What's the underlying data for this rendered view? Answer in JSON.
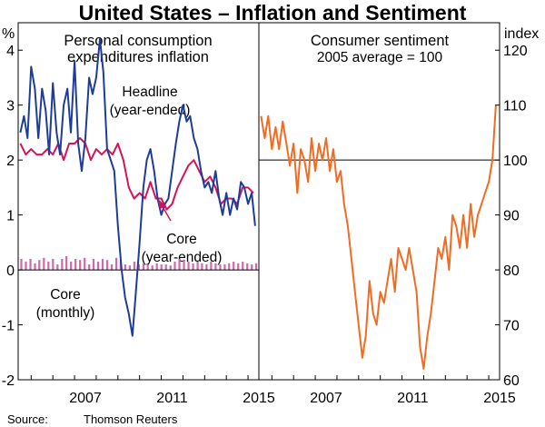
{
  "title": "United States – Inflation and Sentiment",
  "source": {
    "label": "Source:",
    "text": "Thomson Reuters"
  },
  "colors": {
    "headline": "#1f3c96",
    "core": "#d4145a",
    "core_monthly": "#cc6aad",
    "sentiment": "#f26b22",
    "axis": "#000000"
  },
  "chart_data": [
    {
      "type": "line",
      "panel": "left",
      "title": "Personal consumption",
      "subtitle": "expenditures inflation",
      "ylabel": "%",
      "ylim": [
        -2,
        4.5
      ],
      "yticks": [
        -2,
        -1,
        0,
        1,
        2,
        3,
        4
      ],
      "xlim": [
        2003.9,
        2015.0
      ],
      "xticks": [
        2007,
        2011,
        2015
      ],
      "annotations": {
        "headline": [
          "Headline",
          "(year-ended)"
        ],
        "core": [
          "Core",
          "(year-ended)"
        ],
        "core_monthly": [
          "Core",
          "(monthly)"
        ]
      },
      "series": [
        {
          "name": "Headline (year-ended)",
          "type": "line",
          "x": [
            2004.0,
            2004.17,
            2004.33,
            2004.5,
            2004.67,
            2004.83,
            2005.0,
            2005.17,
            2005.33,
            2005.5,
            2005.67,
            2005.83,
            2006.0,
            2006.17,
            2006.33,
            2006.5,
            2006.67,
            2006.83,
            2007.0,
            2007.17,
            2007.33,
            2007.5,
            2007.67,
            2007.83,
            2008.0,
            2008.17,
            2008.33,
            2008.5,
            2008.67,
            2008.83,
            2009.0,
            2009.17,
            2009.33,
            2009.5,
            2009.67,
            2009.83,
            2010.0,
            2010.17,
            2010.33,
            2010.5,
            2010.67,
            2010.83,
            2011.0,
            2011.17,
            2011.33,
            2011.5,
            2011.67,
            2011.83,
            2012.0,
            2012.17,
            2012.33,
            2012.5,
            2012.67,
            2012.83,
            2013.0,
            2013.17,
            2013.33,
            2013.5,
            2013.67,
            2013.83,
            2014.0,
            2014.17,
            2014.33,
            2014.5,
            2014.67,
            2014.83
          ],
          "values": [
            2.5,
            2.8,
            2.4,
            3.7,
            3.3,
            2.4,
            3.3,
            2.9,
            2.1,
            3.4,
            2.5,
            2.1,
            3.0,
            3.3,
            2.5,
            3.8,
            2.3,
            1.8,
            2.4,
            3.5,
            3.2,
            3.5,
            4.2,
            3.6,
            2.2,
            2.0,
            1.8,
            0.8,
            0.0,
            -0.5,
            -0.8,
            -1.2,
            -0.4,
            0.5,
            1.5,
            2.0,
            2.2,
            1.8,
            1.3,
            1.0,
            1.2,
            1.3,
            1.8,
            2.3,
            2.7,
            3.0,
            2.7,
            2.8,
            2.4,
            2.2,
            1.8,
            1.5,
            1.6,
            1.4,
            1.8,
            1.3,
            1.0,
            1.4,
            1.0,
            1.3,
            1.1,
            1.6,
            1.5,
            1.2,
            1.4,
            0.8
          ]
        },
        {
          "name": "Core (year-ended)",
          "type": "line",
          "x": [
            2004.0,
            2004.25,
            2004.5,
            2004.75,
            2005.0,
            2005.25,
            2005.5,
            2005.75,
            2006.0,
            2006.25,
            2006.5,
            2006.75,
            2007.0,
            2007.25,
            2007.5,
            2007.75,
            2008.0,
            2008.25,
            2008.5,
            2008.75,
            2009.0,
            2009.25,
            2009.5,
            2009.75,
            2010.0,
            2010.25,
            2010.5,
            2010.75,
            2011.0,
            2011.25,
            2011.5,
            2011.75,
            2012.0,
            2012.25,
            2012.5,
            2012.75,
            2013.0,
            2013.25,
            2013.5,
            2013.75,
            2014.0,
            2014.25,
            2014.5,
            2014.75
          ],
          "values": [
            2.3,
            2.1,
            2.2,
            2.1,
            2.1,
            2.2,
            2.1,
            2.3,
            2.0,
            2.3,
            2.3,
            2.4,
            2.3,
            2.0,
            2.2,
            2.1,
            2.2,
            2.1,
            2.3,
            2.0,
            1.5,
            1.3,
            1.4,
            1.3,
            1.6,
            1.3,
            1.3,
            1.1,
            1.2,
            1.5,
            1.7,
            1.9,
            2.0,
            1.8,
            1.6,
            1.7,
            1.5,
            1.2,
            1.3,
            1.3,
            1.2,
            1.5,
            1.5,
            1.4
          ]
        },
        {
          "name": "Core (monthly)",
          "type": "bar",
          "x": [
            2004.0,
            2004.21,
            2004.42,
            2004.63,
            2004.83,
            2005.04,
            2005.25,
            2005.46,
            2005.67,
            2005.88,
            2006.08,
            2006.29,
            2006.5,
            2006.71,
            2006.92,
            2007.13,
            2007.33,
            2007.54,
            2007.75,
            2007.96,
            2008.17,
            2008.38,
            2008.58,
            2008.79,
            2009.0,
            2009.21,
            2009.42,
            2009.63,
            2009.83,
            2010.04,
            2010.25,
            2010.46,
            2010.67,
            2010.88,
            2011.08,
            2011.29,
            2011.5,
            2011.71,
            2011.92,
            2012.13,
            2012.33,
            2012.54,
            2012.75,
            2012.96,
            2013.17,
            2013.38,
            2013.58,
            2013.79,
            2014.0,
            2014.21,
            2014.42,
            2014.63,
            2014.83
          ],
          "values": [
            0.2,
            0.15,
            0.2,
            0.12,
            0.18,
            0.22,
            0.15,
            0.2,
            0.1,
            0.2,
            0.25,
            0.15,
            0.2,
            0.18,
            0.22,
            0.1,
            0.2,
            0.15,
            0.2,
            0.18,
            0.1,
            0.22,
            0.15,
            0.1,
            0.08,
            0.15,
            0.1,
            0.12,
            0.1,
            0.08,
            0.12,
            0.1,
            0.1,
            0.08,
            0.15,
            0.2,
            0.18,
            0.15,
            0.12,
            0.15,
            0.12,
            0.1,
            0.15,
            0.12,
            0.1,
            0.1,
            0.12,
            0.15,
            0.12,
            0.15,
            0.12,
            0.1,
            0.12
          ]
        }
      ]
    },
    {
      "type": "line",
      "panel": "right",
      "title": "Consumer sentiment",
      "subtitle": "2005 average = 100",
      "ylabel": "index",
      "ylim": [
        60,
        125
      ],
      "yticks": [
        60,
        70,
        80,
        90,
        100,
        110,
        120
      ],
      "xlim": [
        2003.9,
        2015.0
      ],
      "xticks": [
        2007,
        2011,
        2015
      ],
      "reference_line": 100,
      "series": [
        {
          "name": "Consumer sentiment",
          "x": [
            2004.0,
            2004.17,
            2004.33,
            2004.5,
            2004.67,
            2004.83,
            2005.0,
            2005.17,
            2005.33,
            2005.5,
            2005.67,
            2005.83,
            2006.0,
            2006.17,
            2006.33,
            2006.5,
            2006.67,
            2006.83,
            2007.0,
            2007.17,
            2007.33,
            2007.5,
            2007.67,
            2007.83,
            2008.0,
            2008.17,
            2008.33,
            2008.5,
            2008.67,
            2008.83,
            2009.0,
            2009.17,
            2009.33,
            2009.5,
            2009.67,
            2009.83,
            2010.0,
            2010.17,
            2010.33,
            2010.5,
            2010.67,
            2010.83,
            2011.0,
            2011.17,
            2011.33,
            2011.5,
            2011.67,
            2011.83,
            2012.0,
            2012.17,
            2012.33,
            2012.5,
            2012.67,
            2012.83,
            2013.0,
            2013.17,
            2013.33,
            2013.5,
            2013.67,
            2013.83,
            2014.0,
            2014.17,
            2014.33,
            2014.5,
            2014.67,
            2014.83
          ],
          "values": [
            108,
            104,
            108,
            102,
            106,
            102,
            107,
            103,
            99,
            103,
            94,
            102,
            100,
            96,
            104,
            98,
            103,
            100,
            104,
            98,
            102,
            96,
            98,
            92,
            88,
            82,
            76,
            70,
            64,
            68,
            78,
            72,
            70,
            76,
            74,
            78,
            82,
            76,
            84,
            82,
            80,
            84,
            80,
            76,
            66,
            62,
            68,
            72,
            78,
            84,
            82,
            86,
            80,
            90,
            88,
            84,
            90,
            84,
            92,
            86,
            90,
            92,
            94,
            96,
            100,
            110
          ]
        }
      ]
    }
  ]
}
